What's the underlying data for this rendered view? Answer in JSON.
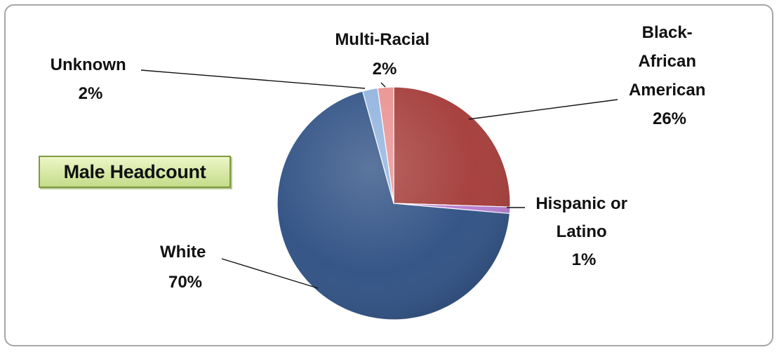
{
  "chart_data": {
    "type": "pie",
    "title": "Male Headcount",
    "start_angle_deg": 0,
    "direction": "clockwise",
    "slices": [
      {
        "name": "Black-African American",
        "label_lines": [
          "Black-",
          "African",
          "American"
        ],
        "percent_label": "26%",
        "value": 25.5,
        "color": "#a33a37"
      },
      {
        "name": "Hispanic or Latino",
        "label_lines": [
          "Hispanic or",
          "Latino"
        ],
        "percent_label": "1%",
        "value": 0.9,
        "color": "#b77bd0"
      },
      {
        "name": "White",
        "label_lines": [
          "White"
        ],
        "percent_label": "70%",
        "value": 69.3,
        "color": "#2d4f83"
      },
      {
        "name": "Unknown",
        "label_lines": [
          "Unknown"
        ],
        "percent_label": "2%",
        "value": 2.1,
        "color": "#8fb1dd"
      },
      {
        "name": "Multi-Racial",
        "label_lines": [
          "Multi-Racial"
        ],
        "percent_label": "2%",
        "value": 2.2,
        "color": "#e98f8f"
      }
    ]
  }
}
